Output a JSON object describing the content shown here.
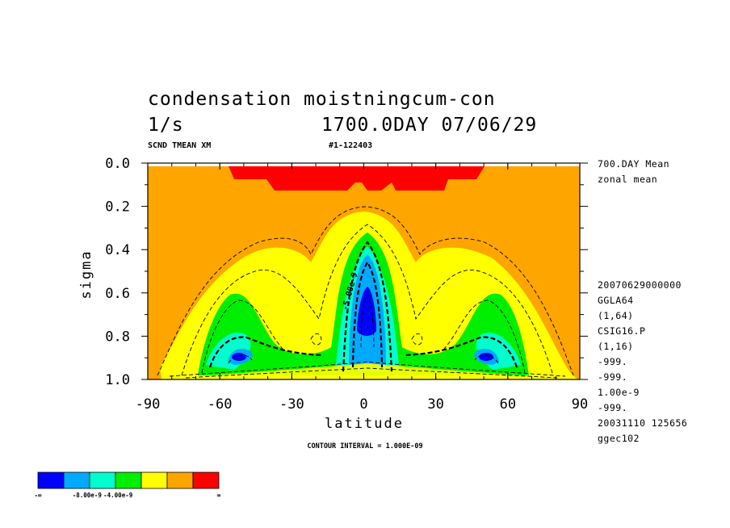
{
  "header": {
    "title_line1": "condensation moistningcum-con",
    "title_units": "1/s",
    "title_time": "1700.0DAY 07/06/29",
    "subtitle_left": "SCND TMEAN XM",
    "subtitle_right": "#1-122403"
  },
  "side_labels": {
    "top": [
      "700.DAY Mean",
      "zonal mean"
    ],
    "info": [
      "20070629000000",
      "GGLA64",
      "(1,64)",
      "CSIG16.P",
      "(1,16)",
      "-999.",
      "-999.",
      "1.00e-9",
      "-999.",
      "20031110 125656",
      "ggec102"
    ]
  },
  "footer": {
    "contour_interval": "CONTOUR INTERVAL = 1.000E-09"
  },
  "legend": {
    "colors": [
      "#0000ff",
      "#00aaff",
      "#00ffcc",
      "#00ee00",
      "#ffff00",
      "#ffa500",
      "#ff0000"
    ],
    "labels": [
      "-∞",
      "-8.00e-9",
      "-4.00e-9",
      "∞"
    ]
  },
  "contour_label": "-5.00e-9",
  "chart_data": {
    "type": "contour",
    "xlabel": "latitude",
    "ylabel": "sigma",
    "xlim": [
      -90,
      90
    ],
    "ylim": [
      1.0,
      0.0
    ],
    "xticks": [
      -90,
      -60,
      -30,
      0,
      30,
      60,
      90
    ],
    "xtick_labels": [
      "-90",
      "-60",
      "-30",
      "0",
      "30",
      "60",
      "90"
    ],
    "yticks": [
      0.0,
      0.2,
      0.4,
      0.6,
      0.8,
      1.0
    ],
    "ytick_labels": [
      "0.0",
      "0.2",
      "0.4",
      "0.6",
      "0.8",
      "1.0"
    ],
    "contour_interval": 1e-09,
    "levels_shaded": [
      "< -8e-9",
      "-8e-9 to -6e-9",
      "-6e-9 to -4e-9",
      "-4e-9 to -2e-9",
      "-2e-9 to -1e-9",
      "-1e-9 to 0",
      "> 0"
    ],
    "features": [
      {
        "name": "equatorial minimum",
        "lat": 0,
        "sigma": 0.7,
        "value_approx": -1e-08
      },
      {
        "name": "southern midlatitude minimum",
        "lat": -52,
        "sigma": 0.9,
        "value_approx": -9e-09
      },
      {
        "name": "northern midlatitude minimum",
        "lat": 52,
        "sigma": 0.9,
        "value_approx": -9e-09
      },
      {
        "name": "upper positive region",
        "lat_range": [
          -55,
          55
        ],
        "sigma_range": [
          0.03,
          0.13
        ],
        "value_approx": 1e-10
      }
    ]
  }
}
